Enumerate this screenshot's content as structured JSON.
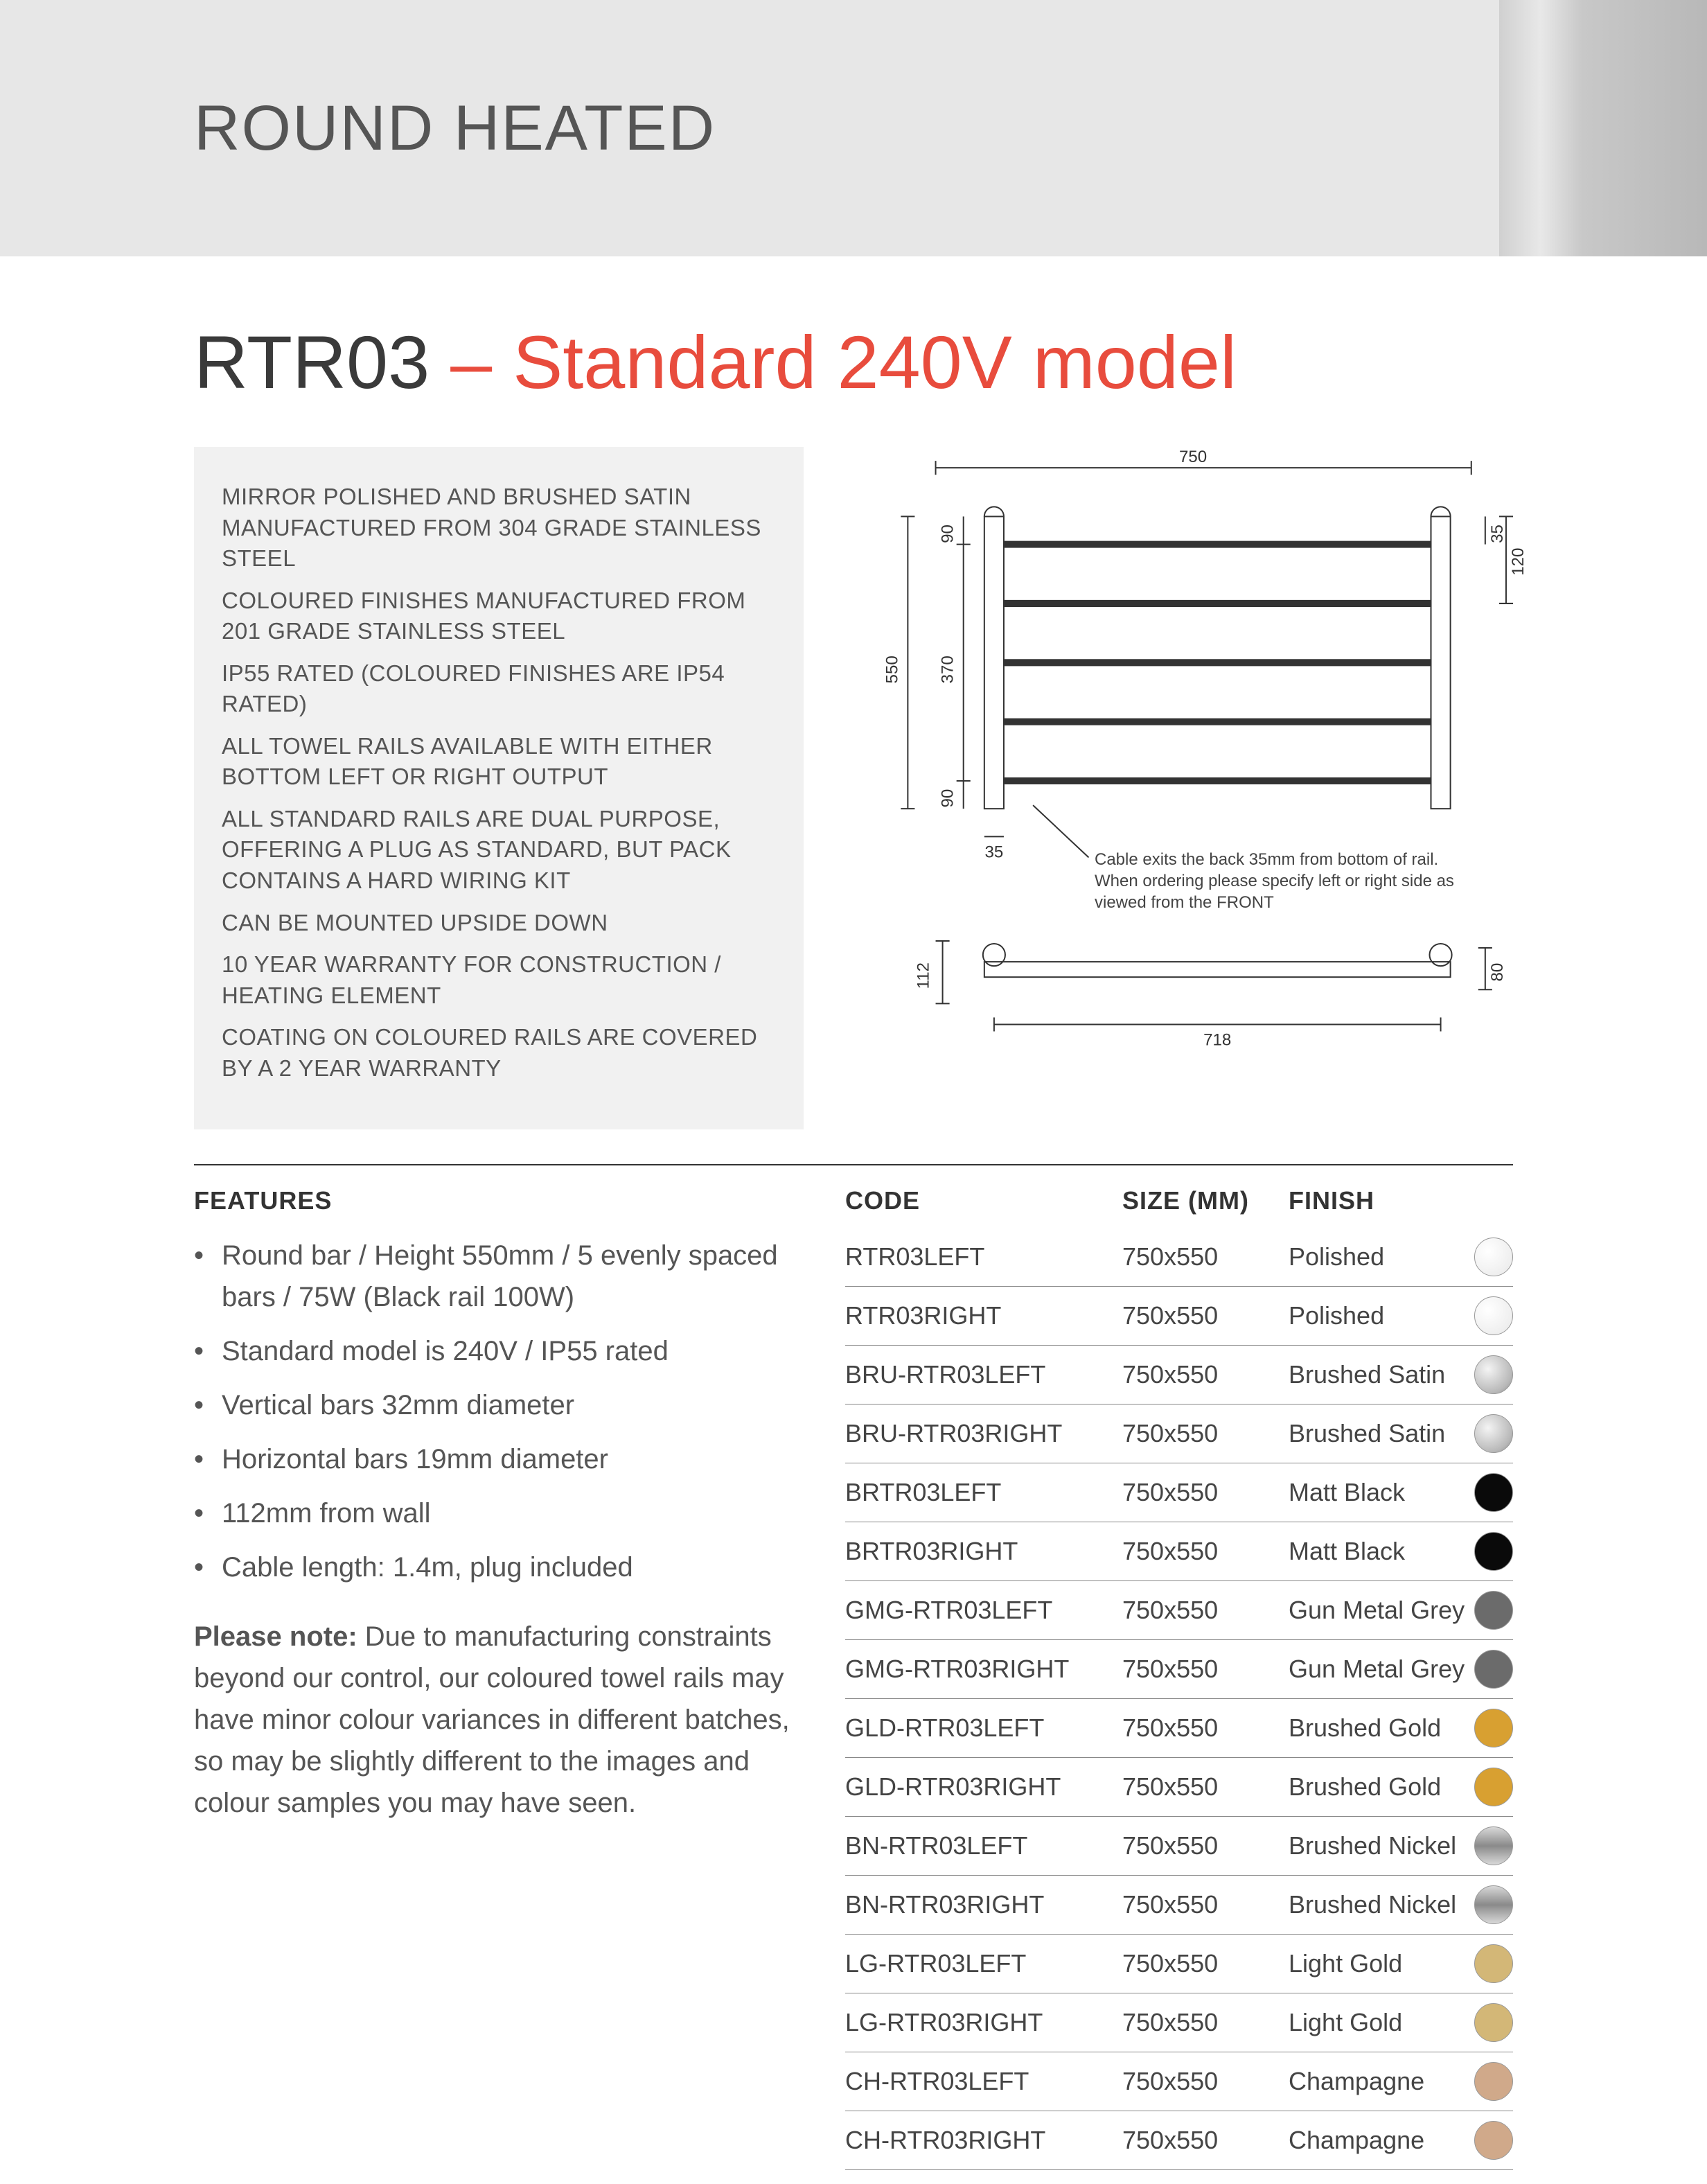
{
  "header": {
    "title": "ROUND HEATED"
  },
  "model": {
    "code": "RTR03",
    "sep": " – ",
    "variant": "Standard 240V model"
  },
  "specs": [
    "MIRROR POLISHED AND BRUSHED SATIN MANUFACTURED FROM 304 GRADE STAINLESS STEEL",
    "COLOURED FINISHES MANUFACTURED FROM 201 GRADE STAINLESS STEEL",
    "IP55 RATED (COLOURED FINISHES ARE IP54 RATED)",
    "ALL TOWEL RAILS AVAILABLE WITH EITHER BOTTOM LEFT OR RIGHT OUTPUT",
    "ALL STANDARD RAILS ARE DUAL PURPOSE, OFFERING A PLUG AS STANDARD, BUT PACK CONTAINS A HARD WIRING KIT",
    "CAN BE MOUNTED UPSIDE DOWN",
    "10 YEAR WARRANTY FOR CONSTRUCTION / HEATING ELEMENT",
    "COATING ON COLOURED RAILS ARE COVERED BY A 2 YEAR WARRANTY"
  ],
  "diagram": {
    "front": {
      "width_label": "750",
      "height_label": "550",
      "inner_height_label": "370",
      "top_gap": "90",
      "bottom_gap": "90",
      "top_offset": "35",
      "right_span": "120",
      "bottom_offset": "35",
      "bars": 5
    },
    "side": {
      "depth_label": "112",
      "mount_label": "80",
      "base_label": "718"
    },
    "note": "Cable exits the back 35mm from bottom of rail. When ordering please specify left or right side as viewed from the FRONT"
  },
  "features": {
    "header": "FEATURES",
    "items": [
      "Round bar / Height 550mm / 5 evenly spaced bars / 75W (Black rail 100W)",
      "Standard model is 240V / IP55 rated",
      "Vertical bars 32mm diameter",
      "Horizontal bars 19mm diameter",
      "112mm from wall",
      "Cable length: 1.4m, plug included"
    ],
    "note_bold": "Please note:",
    "note_text": " Due to manufacturing constraints beyond our control, our coloured towel rails may have minor colour variances in different batches, so may be slightly different to the images and colour samples you may have seen."
  },
  "table": {
    "headers": {
      "code": "CODE",
      "size": "SIZE (MM)",
      "finish": "FINISH"
    },
    "rows": [
      {
        "code": "RTR03LEFT",
        "size": "750x550",
        "finish": "Polished",
        "swatch": "sw-polished"
      },
      {
        "code": "RTR03RIGHT",
        "size": "750x550",
        "finish": "Polished",
        "swatch": "sw-polished"
      },
      {
        "code": "BRU-RTR03LEFT",
        "size": "750x550",
        "finish": "Brushed Satin",
        "swatch": "sw-brushed"
      },
      {
        "code": "BRU-RTR03RIGHT",
        "size": "750x550",
        "finish": "Brushed Satin",
        "swatch": "sw-brushed"
      },
      {
        "code": "BRTR03LEFT",
        "size": "750x550",
        "finish": "Matt Black",
        "swatch": "sw-black"
      },
      {
        "code": "BRTR03RIGHT",
        "size": "750x550",
        "finish": "Matt Black",
        "swatch": "sw-black"
      },
      {
        "code": "GMG-RTR03LEFT",
        "size": "750x550",
        "finish": "Gun Metal Grey",
        "swatch": "sw-gunmetal"
      },
      {
        "code": "GMG-RTR03RIGHT",
        "size": "750x550",
        "finish": "Gun Metal Grey",
        "swatch": "sw-gunmetal"
      },
      {
        "code": "GLD-RTR03LEFT",
        "size": "750x550",
        "finish": "Brushed Gold",
        "swatch": "sw-gold"
      },
      {
        "code": "GLD-RTR03RIGHT",
        "size": "750x550",
        "finish": "Brushed Gold",
        "swatch": "sw-gold"
      },
      {
        "code": "BN-RTR03LEFT",
        "size": "750x550",
        "finish": "Brushed Nickel",
        "swatch": "sw-nickel"
      },
      {
        "code": "BN-RTR03RIGHT",
        "size": "750x550",
        "finish": "Brushed Nickel",
        "swatch": "sw-nickel"
      },
      {
        "code": "LG-RTR03LEFT",
        "size": "750x550",
        "finish": "Light Gold",
        "swatch": "sw-lightgold"
      },
      {
        "code": "LG-RTR03RIGHT",
        "size": "750x550",
        "finish": "Light Gold",
        "swatch": "sw-lightgold"
      },
      {
        "code": "CH-RTR03LEFT",
        "size": "750x550",
        "finish": "Champagne",
        "swatch": "sw-champagne"
      },
      {
        "code": "CH-RTR03RIGHT",
        "size": "750x550",
        "finish": "Champagne",
        "swatch": "sw-champagne"
      }
    ]
  }
}
